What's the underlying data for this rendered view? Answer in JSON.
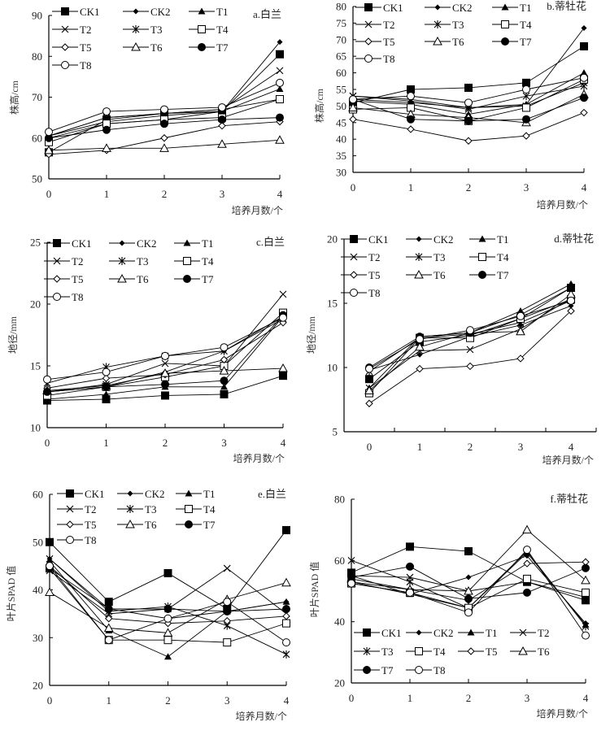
{
  "chart_data": [
    {
      "id": "a",
      "type": "line",
      "title": "a.白兰",
      "xlabel": "培养月数/个",
      "ylabel": "株高/cm",
      "x": [
        0,
        1,
        2,
        3,
        4
      ],
      "xticks": [
        "0",
        "1",
        "2",
        "3",
        "4"
      ],
      "ylim": [
        50,
        90
      ],
      "yticks": [
        50,
        60,
        70,
        80,
        90
      ],
      "legend": "top-inside",
      "series": [
        {
          "name": "CK1",
          "marker": "square-filled",
          "values": [
            56.5,
            64.5,
            66,
            66.5,
            80.5
          ]
        },
        {
          "name": "CK2",
          "marker": "diamond-filled",
          "values": [
            60.5,
            64,
            65.5,
            66.5,
            83.5
          ]
        },
        {
          "name": "T1",
          "marker": "triangle-filled",
          "values": [
            60,
            63.5,
            64.5,
            66.5,
            72
          ]
        },
        {
          "name": "T2",
          "marker": "x",
          "values": [
            60.5,
            65,
            66,
            67,
            76.5
          ]
        },
        {
          "name": "T3",
          "marker": "asterisk",
          "values": [
            60.5,
            65,
            66,
            67,
            69.5
          ]
        },
        {
          "name": "T4",
          "marker": "square-open",
          "values": [
            59,
            63.5,
            64.5,
            65,
            69.5
          ]
        },
        {
          "name": "T5",
          "marker": "diamond-open",
          "values": [
            56,
            57,
            60,
            63,
            64
          ]
        },
        {
          "name": "T6",
          "marker": "triangle-open",
          "values": [
            57,
            57.5,
            57.5,
            58.5,
            59.5
          ]
        },
        {
          "name": "T7",
          "marker": "circle-filled",
          "values": [
            60,
            62,
            63.5,
            64.5,
            65
          ]
        },
        {
          "name": "T8",
          "marker": "circle-open",
          "values": [
            61.5,
            66.5,
            67,
            67.5,
            73.5
          ]
        }
      ]
    },
    {
      "id": "b",
      "type": "line",
      "title": "b.蒂牡花",
      "xlabel": "培养月数/个",
      "ylabel": "株高/cm",
      "x": [
        0,
        1,
        2,
        3,
        4
      ],
      "xticks": [
        "0",
        "1",
        "2",
        "3",
        "4"
      ],
      "ylim": [
        30,
        80
      ],
      "yticks": [
        30,
        35,
        40,
        45,
        50,
        55,
        60,
        65,
        70,
        75,
        80
      ],
      "legend": "top-inside",
      "series": [
        {
          "name": "CK1",
          "marker": "square-filled",
          "values": [
            51,
            55,
            55.5,
            57,
            68
          ]
        },
        {
          "name": "CK2",
          "marker": "diamond-filled",
          "values": [
            52,
            51,
            49.5,
            50.5,
            73.5
          ]
        },
        {
          "name": "T1",
          "marker": "triangle-filled",
          "values": [
            51.5,
            50.5,
            47.5,
            50.5,
            60
          ]
        },
        {
          "name": "T2",
          "marker": "x",
          "values": [
            53,
            52,
            49.5,
            50,
            57
          ]
        },
        {
          "name": "T3",
          "marker": "asterisk",
          "values": [
            53,
            51.5,
            49,
            53,
            56
          ]
        },
        {
          "name": "T4",
          "marker": "square-open",
          "values": [
            49,
            49.5,
            45.5,
            49.5,
            58
          ]
        },
        {
          "name": "T5",
          "marker": "diamond-open",
          "values": [
            46,
            43,
            39.5,
            41,
            48
          ]
        },
        {
          "name": "T6",
          "marker": "triangle-open",
          "values": [
            49.5,
            47.5,
            46.5,
            45,
            53.5
          ]
        },
        {
          "name": "T7",
          "marker": "circle-filled",
          "values": [
            52,
            46,
            45.5,
            46,
            52.5
          ]
        },
        {
          "name": "T8",
          "marker": "circle-open",
          "values": [
            52,
            53,
            51,
            55,
            58.5
          ]
        }
      ]
    },
    {
      "id": "c",
      "type": "line",
      "title": "c.白兰",
      "xlabel": "培养月数/个",
      "ylabel": "地径/mm",
      "x": [
        0,
        1,
        2,
        3,
        4
      ],
      "xticks": [
        "0",
        "1",
        "2",
        "3",
        "4"
      ],
      "ylim": [
        10,
        25
      ],
      "yticks": [
        10,
        15,
        20,
        25
      ],
      "legend": "top-inside",
      "series": [
        {
          "name": "CK1",
          "marker": "square-filled",
          "values": [
            12.2,
            12.3,
            12.6,
            12.7,
            14.2
          ]
        },
        {
          "name": "CK2",
          "marker": "diamond-filled",
          "values": [
            12.9,
            13.3,
            14.5,
            16.2,
            19.0
          ]
        },
        {
          "name": "T1",
          "marker": "triangle-filled",
          "values": [
            12.3,
            12.7,
            13.3,
            13.3,
            19.0
          ]
        },
        {
          "name": "T2",
          "marker": "x",
          "values": [
            12.9,
            13.5,
            15.2,
            15.0,
            20.8
          ]
        },
        {
          "name": "T3",
          "marker": "asterisk",
          "values": [
            13.6,
            14.9,
            15.8,
            16.2,
            18.8
          ]
        },
        {
          "name": "T4",
          "marker": "square-open",
          "values": [
            12.6,
            13.3,
            14.1,
            15.0,
            19.3
          ]
        },
        {
          "name": "T5",
          "marker": "diamond-open",
          "values": [
            13.2,
            14.0,
            14.3,
            15.5,
            18.5
          ]
        },
        {
          "name": "T6",
          "marker": "triangle-open",
          "values": [
            13.0,
            13.4,
            14.4,
            14.6,
            14.8
          ]
        },
        {
          "name": "T7",
          "marker": "circle-filled",
          "values": [
            12.9,
            13.3,
            13.5,
            13.8,
            19.1
          ]
        },
        {
          "name": "T8",
          "marker": "circle-open",
          "values": [
            13.9,
            14.5,
            15.8,
            16.5,
            18.9
          ]
        }
      ]
    },
    {
      "id": "d",
      "type": "line",
      "title": "d.蒂牡花",
      "xlabel": "培养月数/个",
      "ylabel": "地径/mm",
      "x": [
        0,
        1,
        2,
        3,
        4
      ],
      "xticks": [
        "0",
        "1",
        "2",
        "3",
        "4"
      ],
      "ylim": [
        5,
        20
      ],
      "yticks": [
        5,
        10,
        15,
        20
      ],
      "legend": "top-inside",
      "series": [
        {
          "name": "CK1",
          "marker": "square-filled",
          "values": [
            9.1,
            12.0,
            12.5,
            13.8,
            16.2
          ]
        },
        {
          "name": "CK2",
          "marker": "diamond-filled",
          "values": [
            9.8,
            11.0,
            12.4,
            13.3,
            14.8
          ]
        },
        {
          "name": "T1",
          "marker": "triangle-filled",
          "values": [
            8.4,
            12.4,
            12.7,
            14.4,
            16.5
          ]
        },
        {
          "name": "T2",
          "marker": "x",
          "values": [
            8.4,
            11.3,
            11.4,
            13.0,
            15.4
          ]
        },
        {
          "name": "T3",
          "marker": "asterisk",
          "values": [
            9.7,
            12.3,
            12.6,
            13.5,
            15.2
          ]
        },
        {
          "name": "T4",
          "marker": "square-open",
          "values": [
            8.0,
            12.3,
            12.3,
            13.8,
            15.3
          ]
        },
        {
          "name": "T5",
          "marker": "diamond-open",
          "values": [
            7.2,
            9.9,
            10.1,
            10.7,
            14.4
          ]
        },
        {
          "name": "T6",
          "marker": "triangle-open",
          "values": [
            8.2,
            11.6,
            12.7,
            12.8,
            15.7
          ]
        },
        {
          "name": "T7",
          "marker": "circle-filled",
          "values": [
            10.0,
            12.4,
            12.7,
            14.1,
            16.2
          ]
        },
        {
          "name": "T8",
          "marker": "circle-open",
          "values": [
            9.9,
            12.2,
            12.9,
            14.0,
            15.2
          ]
        }
      ]
    },
    {
      "id": "e",
      "type": "line",
      "title": "e.白兰",
      "xlabel": "培养月数/个",
      "ylabel": "叶片SPAD 值",
      "x": [
        0,
        1,
        2,
        3,
        4
      ],
      "xticks": [
        "0",
        "1",
        "2",
        "3",
        "4"
      ],
      "ylim": [
        20,
        60
      ],
      "yticks": [
        20,
        30,
        40,
        50,
        60
      ],
      "legend": "top-inside",
      "series": [
        {
          "name": "CK1",
          "marker": "square-filled",
          "values": [
            50,
            37.5,
            43.5,
            36,
            52.5
          ]
        },
        {
          "name": "CK2",
          "marker": "diamond-filled",
          "values": [
            46.5,
            36,
            34,
            35.5,
            37.5
          ]
        },
        {
          "name": "T1",
          "marker": "triangle-filled",
          "values": [
            46,
            31.5,
            26,
            35.5,
            37.5
          ]
        },
        {
          "name": "T2",
          "marker": "x",
          "values": [
            44,
            35,
            36,
            44.5,
            35
          ]
        },
        {
          "name": "T3",
          "marker": "asterisk",
          "values": [
            46.5,
            35.5,
            36.5,
            32.5,
            26.5
          ]
        },
        {
          "name": "T4",
          "marker": "square-open",
          "values": [
            44.5,
            29.5,
            29.5,
            29,
            33
          ]
        },
        {
          "name": "T5",
          "marker": "diamond-open",
          "values": [
            45,
            34,
            33,
            33.5,
            34.5
          ]
        },
        {
          "name": "T6",
          "marker": "triangle-open",
          "values": [
            39.5,
            32,
            31,
            38,
            41.5
          ]
        },
        {
          "name": "T7",
          "marker": "circle-filled",
          "values": [
            44.5,
            36,
            36,
            35.5,
            36
          ]
        },
        {
          "name": "T8",
          "marker": "circle-open",
          "values": [
            45,
            29.5,
            34,
            37.5,
            29
          ]
        }
      ]
    },
    {
      "id": "f",
      "type": "line",
      "title": "f.蒂牡花",
      "xlabel": "培养月数/个",
      "ylabel": "叶片SPAD 值",
      "x": [
        0,
        1,
        2,
        3,
        4
      ],
      "xticks": [
        "0",
        "1",
        "2",
        "3",
        "4"
      ],
      "ylim": [
        20,
        80
      ],
      "yticks": [
        20,
        40,
        60,
        80
      ],
      "legend": "bottom-inside",
      "series": [
        {
          "name": "CK1",
          "marker": "square-filled",
          "values": [
            56,
            64.5,
            63,
            53,
            47
          ]
        },
        {
          "name": "CK2",
          "marker": "diamond-filled",
          "values": [
            55,
            49,
            54.5,
            61.5,
            39.5
          ]
        },
        {
          "name": "T1",
          "marker": "triangle-filled",
          "values": [
            53,
            49,
            44.5,
            62.5,
            39
          ]
        },
        {
          "name": "T2",
          "marker": "x",
          "values": [
            55,
            54.5,
            50,
            53,
            48
          ]
        },
        {
          "name": "T3",
          "marker": "asterisk",
          "values": [
            60,
            53,
            44.5,
            63,
            38.5
          ]
        },
        {
          "name": "T4",
          "marker": "square-open",
          "values": [
            52.5,
            49.5,
            44.5,
            54,
            49.5
          ]
        },
        {
          "name": "T5",
          "marker": "diamond-open",
          "values": [
            53,
            50.5,
            47,
            59,
            59.5
          ]
        },
        {
          "name": "T6",
          "marker": "triangle-open",
          "values": [
            54,
            50.5,
            50,
            70,
            53.5
          ]
        },
        {
          "name": "T7",
          "marker": "circle-filled",
          "values": [
            54.5,
            58,
            47.5,
            49.5,
            57.5
          ]
        },
        {
          "name": "T8",
          "marker": "circle-open",
          "values": [
            52.5,
            49.5,
            43,
            63.5,
            35.5
          ]
        }
      ]
    }
  ]
}
